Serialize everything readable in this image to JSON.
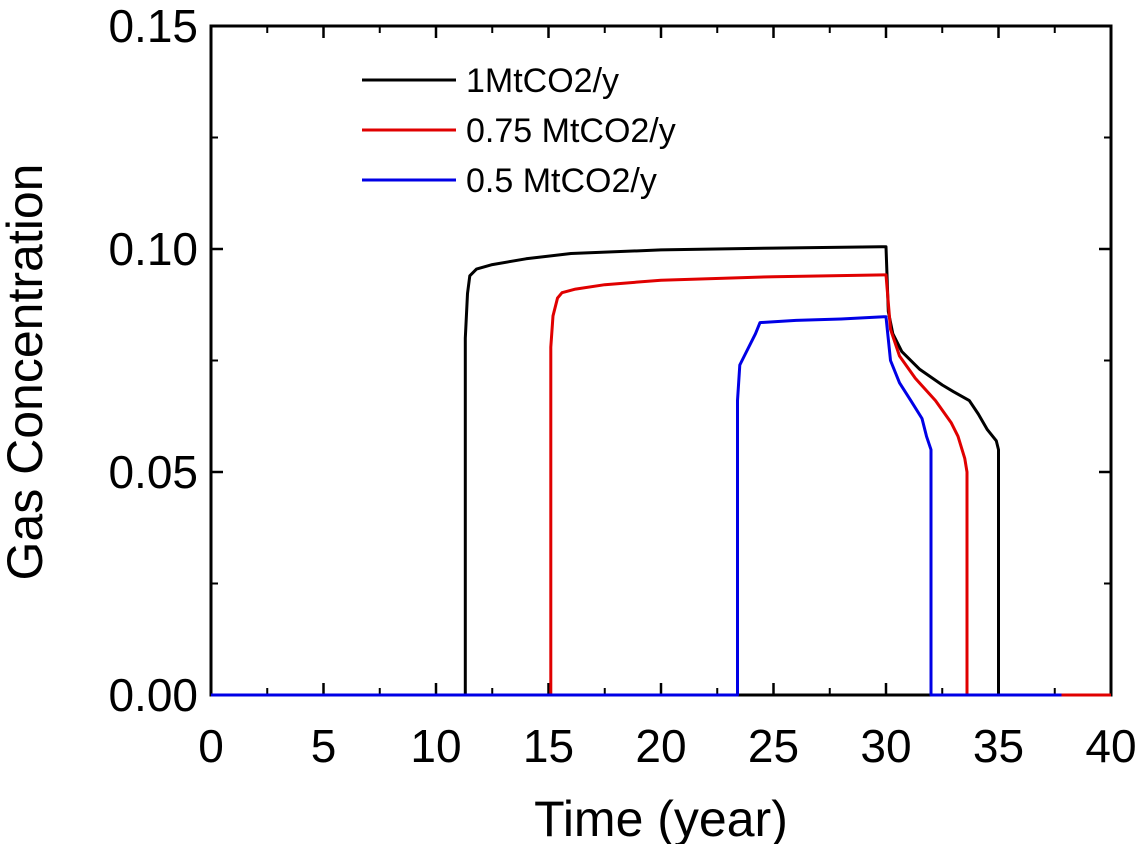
{
  "chart_data": {
    "type": "line",
    "title": "",
    "xlabel": "Time (year)",
    "ylabel": "Gas Concentration",
    "xlim": [
      0,
      40
    ],
    "ylim": [
      0,
      0.15
    ],
    "xticks": [
      0,
      5,
      10,
      15,
      20,
      25,
      30,
      35,
      40
    ],
    "xtick_labels": [
      "0",
      "5",
      "10",
      "15",
      "20",
      "25",
      "30",
      "35",
      "40"
    ],
    "yticks": [
      0,
      0.05,
      0.1,
      0.15
    ],
    "ytick_labels": [
      "0.00",
      "0.05",
      "0.10",
      "0.15"
    ],
    "grid": false,
    "legend_position": "top-center",
    "series": [
      {
        "name": "1MtCO2/y",
        "color": "#000000",
        "x": [
          0,
          11.3,
          11.3,
          11.4,
          11.5,
          11.8,
          12.5,
          14,
          16,
          20,
          25,
          29.8,
          30.0,
          30.1,
          30.3,
          30.7,
          31.5,
          32.5,
          33.0,
          33.7,
          34.1,
          34.5,
          34.9,
          35.0,
          35.0,
          37.8
        ],
        "values": [
          0,
          0,
          0.08,
          0.09,
          0.094,
          0.0955,
          0.0965,
          0.0978,
          0.099,
          0.0998,
          0.1002,
          0.1005,
          0.1005,
          0.086,
          0.081,
          0.077,
          0.073,
          0.0695,
          0.068,
          0.066,
          0.063,
          0.0595,
          0.057,
          0.055,
          0,
          0
        ]
      },
      {
        "name": "0.75 MtCO2/y",
        "color": "#e00000",
        "x": [
          15.1,
          15.1,
          15.2,
          15.4,
          15.6,
          16.2,
          17.5,
          20,
          25,
          29.9,
          30.0,
          30.2,
          30.6,
          31.3,
          32.2,
          32.9,
          33.2,
          33.5,
          33.6,
          33.6,
          38,
          40
        ],
        "values": [
          0,
          0.078,
          0.085,
          0.089,
          0.0902,
          0.091,
          0.092,
          0.093,
          0.0938,
          0.0942,
          0.0942,
          0.082,
          0.076,
          0.071,
          0.066,
          0.061,
          0.058,
          0.053,
          0.05,
          0,
          0,
          0
        ]
      },
      {
        "name": "0.5 MtCO2/y",
        "color": "#0000e6",
        "x": [
          0,
          23.4,
          23.4,
          23.5,
          23.7,
          24.2,
          24.4,
          26,
          28,
          29.9,
          30.0,
          30.2,
          30.6,
          31.1,
          31.6,
          31.8,
          32.0,
          32.0,
          37.8
        ],
        "values": [
          0,
          0,
          0.066,
          0.074,
          0.076,
          0.081,
          0.0835,
          0.084,
          0.0843,
          0.0848,
          0.0848,
          0.075,
          0.07,
          0.066,
          0.062,
          0.058,
          0.055,
          0,
          0
        ]
      }
    ]
  }
}
